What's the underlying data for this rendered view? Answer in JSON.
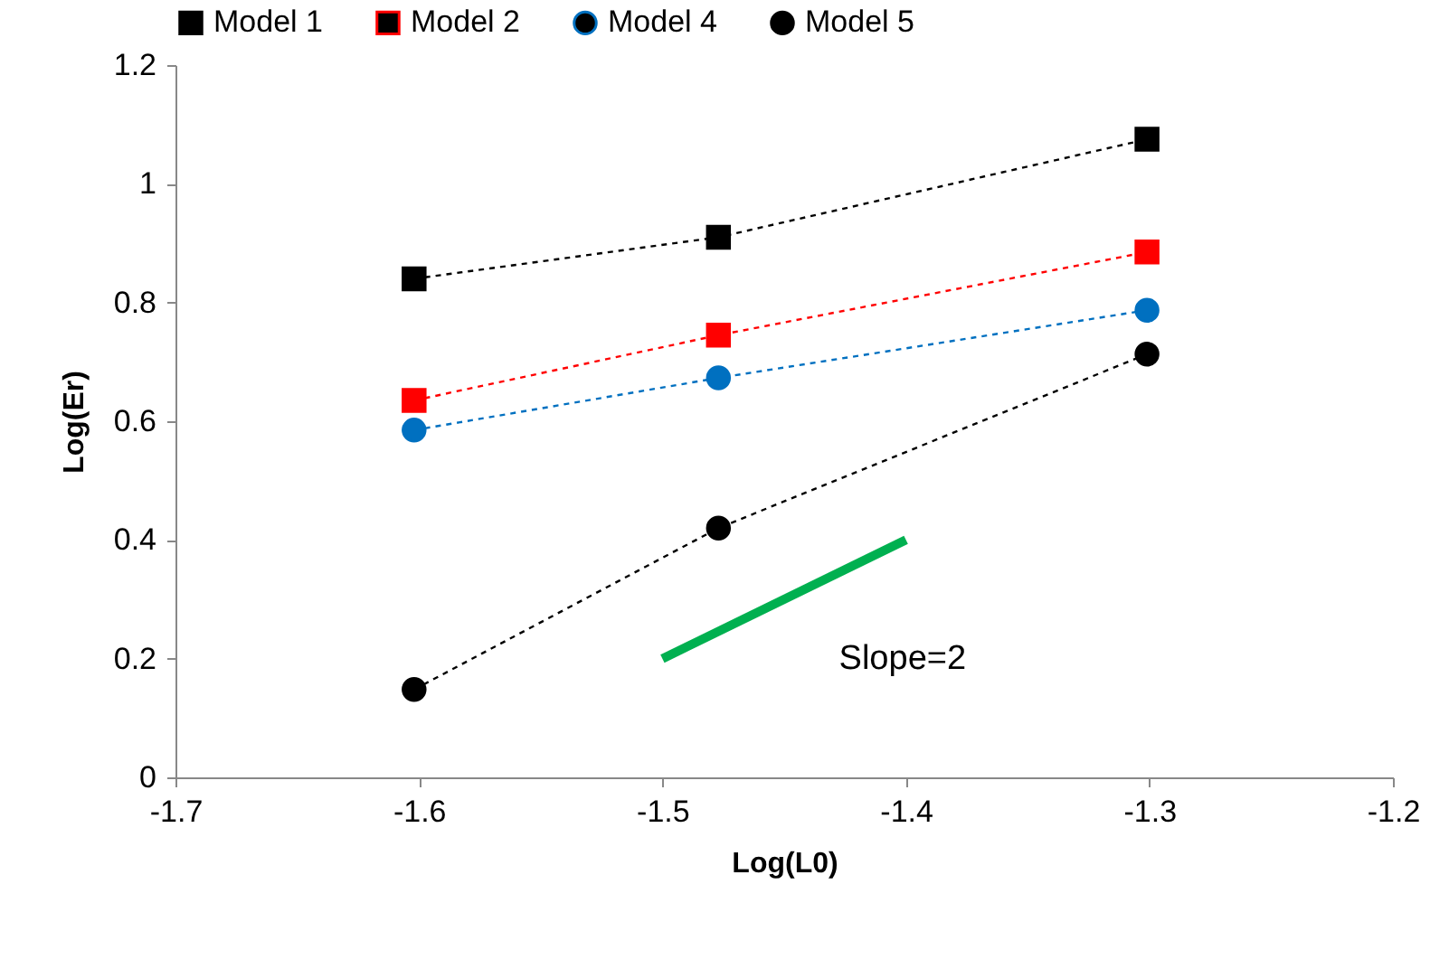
{
  "chart_data": {
    "type": "line",
    "xlabel": "Log(L0)",
    "ylabel": "Log(Er)",
    "x": [
      -1.602,
      -1.477,
      -1.301
    ],
    "series": [
      {
        "name": "Model 1",
        "color": "#000000",
        "marker": "square",
        "line_style": "dashed",
        "values": [
          0.84,
          0.91,
          1.075
        ]
      },
      {
        "name": "Model 2",
        "color": "#ff0000",
        "marker": "square",
        "line_style": "dashed",
        "values": [
          0.635,
          0.745,
          0.885
        ]
      },
      {
        "name": "Model 4",
        "color": "#0070c0",
        "marker": "circle",
        "line_style": "dashed",
        "values": [
          0.585,
          0.673,
          0.787
        ]
      },
      {
        "name": "Model 5",
        "color": "#000000",
        "marker": "circle",
        "line_style": "dashed",
        "values": [
          0.148,
          0.42,
          0.713
        ]
      },
      {
        "color": "#00b050",
        "marker": "none",
        "line_style": "solid",
        "x": [
          -1.5,
          -1.4
        ],
        "values": [
          0.2,
          0.4
        ]
      }
    ],
    "annotations": [
      "Slope=2"
    ],
    "xlim": [
      -1.7,
      -1.2
    ],
    "xticks": [
      -1.7,
      -1.6,
      -1.5,
      -1.4,
      -1.3,
      -1.2
    ],
    "ylim": [
      0,
      1.2
    ],
    "yticks": [
      0,
      0.2,
      0.4,
      0.6,
      0.8,
      1,
      1.2
    ],
    "grid": false,
    "legend": "top"
  }
}
